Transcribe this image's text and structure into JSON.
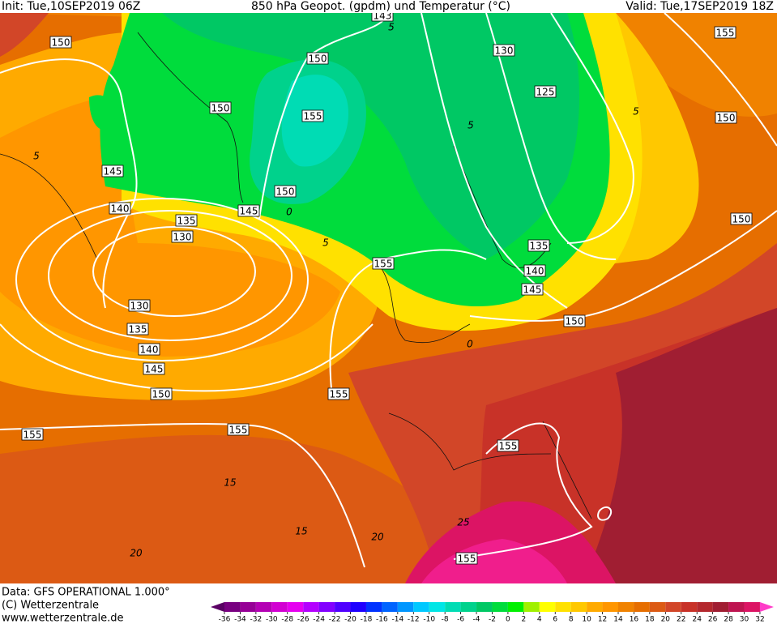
{
  "header": {
    "init": "Init: Tue,10SEP2019 06Z",
    "title": "850 hPa Geopot. (gpdm) und Temperatur (°C)",
    "valid": "Valid: Tue,17SEP2019 18Z"
  },
  "footer": {
    "data": "Data: GFS OPERATIONAL 1.000°",
    "copyright": "(C) Wetterzentrale",
    "url": "www.wetterzentrale.de"
  },
  "colorbar": {
    "ticks": [
      -36,
      -34,
      -32,
      -30,
      -28,
      -26,
      -24,
      -22,
      -20,
      -18,
      -16,
      -14,
      -12,
      -10,
      -8,
      -6,
      -4,
      -2,
      0,
      2,
      4,
      6,
      8,
      10,
      12,
      14,
      16,
      18,
      20,
      22,
      24,
      26,
      28,
      30,
      32
    ],
    "colors": [
      "#5a0064",
      "#780080",
      "#960096",
      "#b400b4",
      "#d200d2",
      "#e600f0",
      "#b400ff",
      "#8200ff",
      "#5000ff",
      "#1e00ff",
      "#0032ff",
      "#0064ff",
      "#0096ff",
      "#00c8ff",
      "#00e6e6",
      "#00dcb4",
      "#00d28c",
      "#00c864",
      "#00dc3c",
      "#00f000",
      "#a0f000",
      "#ffff00",
      "#ffe100",
      "#ffc800",
      "#ffaa00",
      "#ff9600",
      "#f08200",
      "#e66e00",
      "#dc5a14",
      "#d24628",
      "#c83228",
      "#b4282d",
      "#a01e32",
      "#be1450",
      "#dc1464",
      "#f01e8c",
      "#ff3cc8"
    ]
  },
  "geopotential_labels": [
    143,
    150,
    150,
    130,
    155,
    125,
    150,
    155,
    150,
    145,
    150,
    140,
    145,
    135,
    130,
    150,
    155,
    135,
    140,
    145,
    130,
    150,
    135,
    140,
    145,
    150,
    155,
    155,
    155,
    155,
    155
  ],
  "temperature_labels": [
    5,
    5,
    5,
    0,
    5,
    5,
    0,
    15,
    15,
    20,
    20,
    25
  ]
}
